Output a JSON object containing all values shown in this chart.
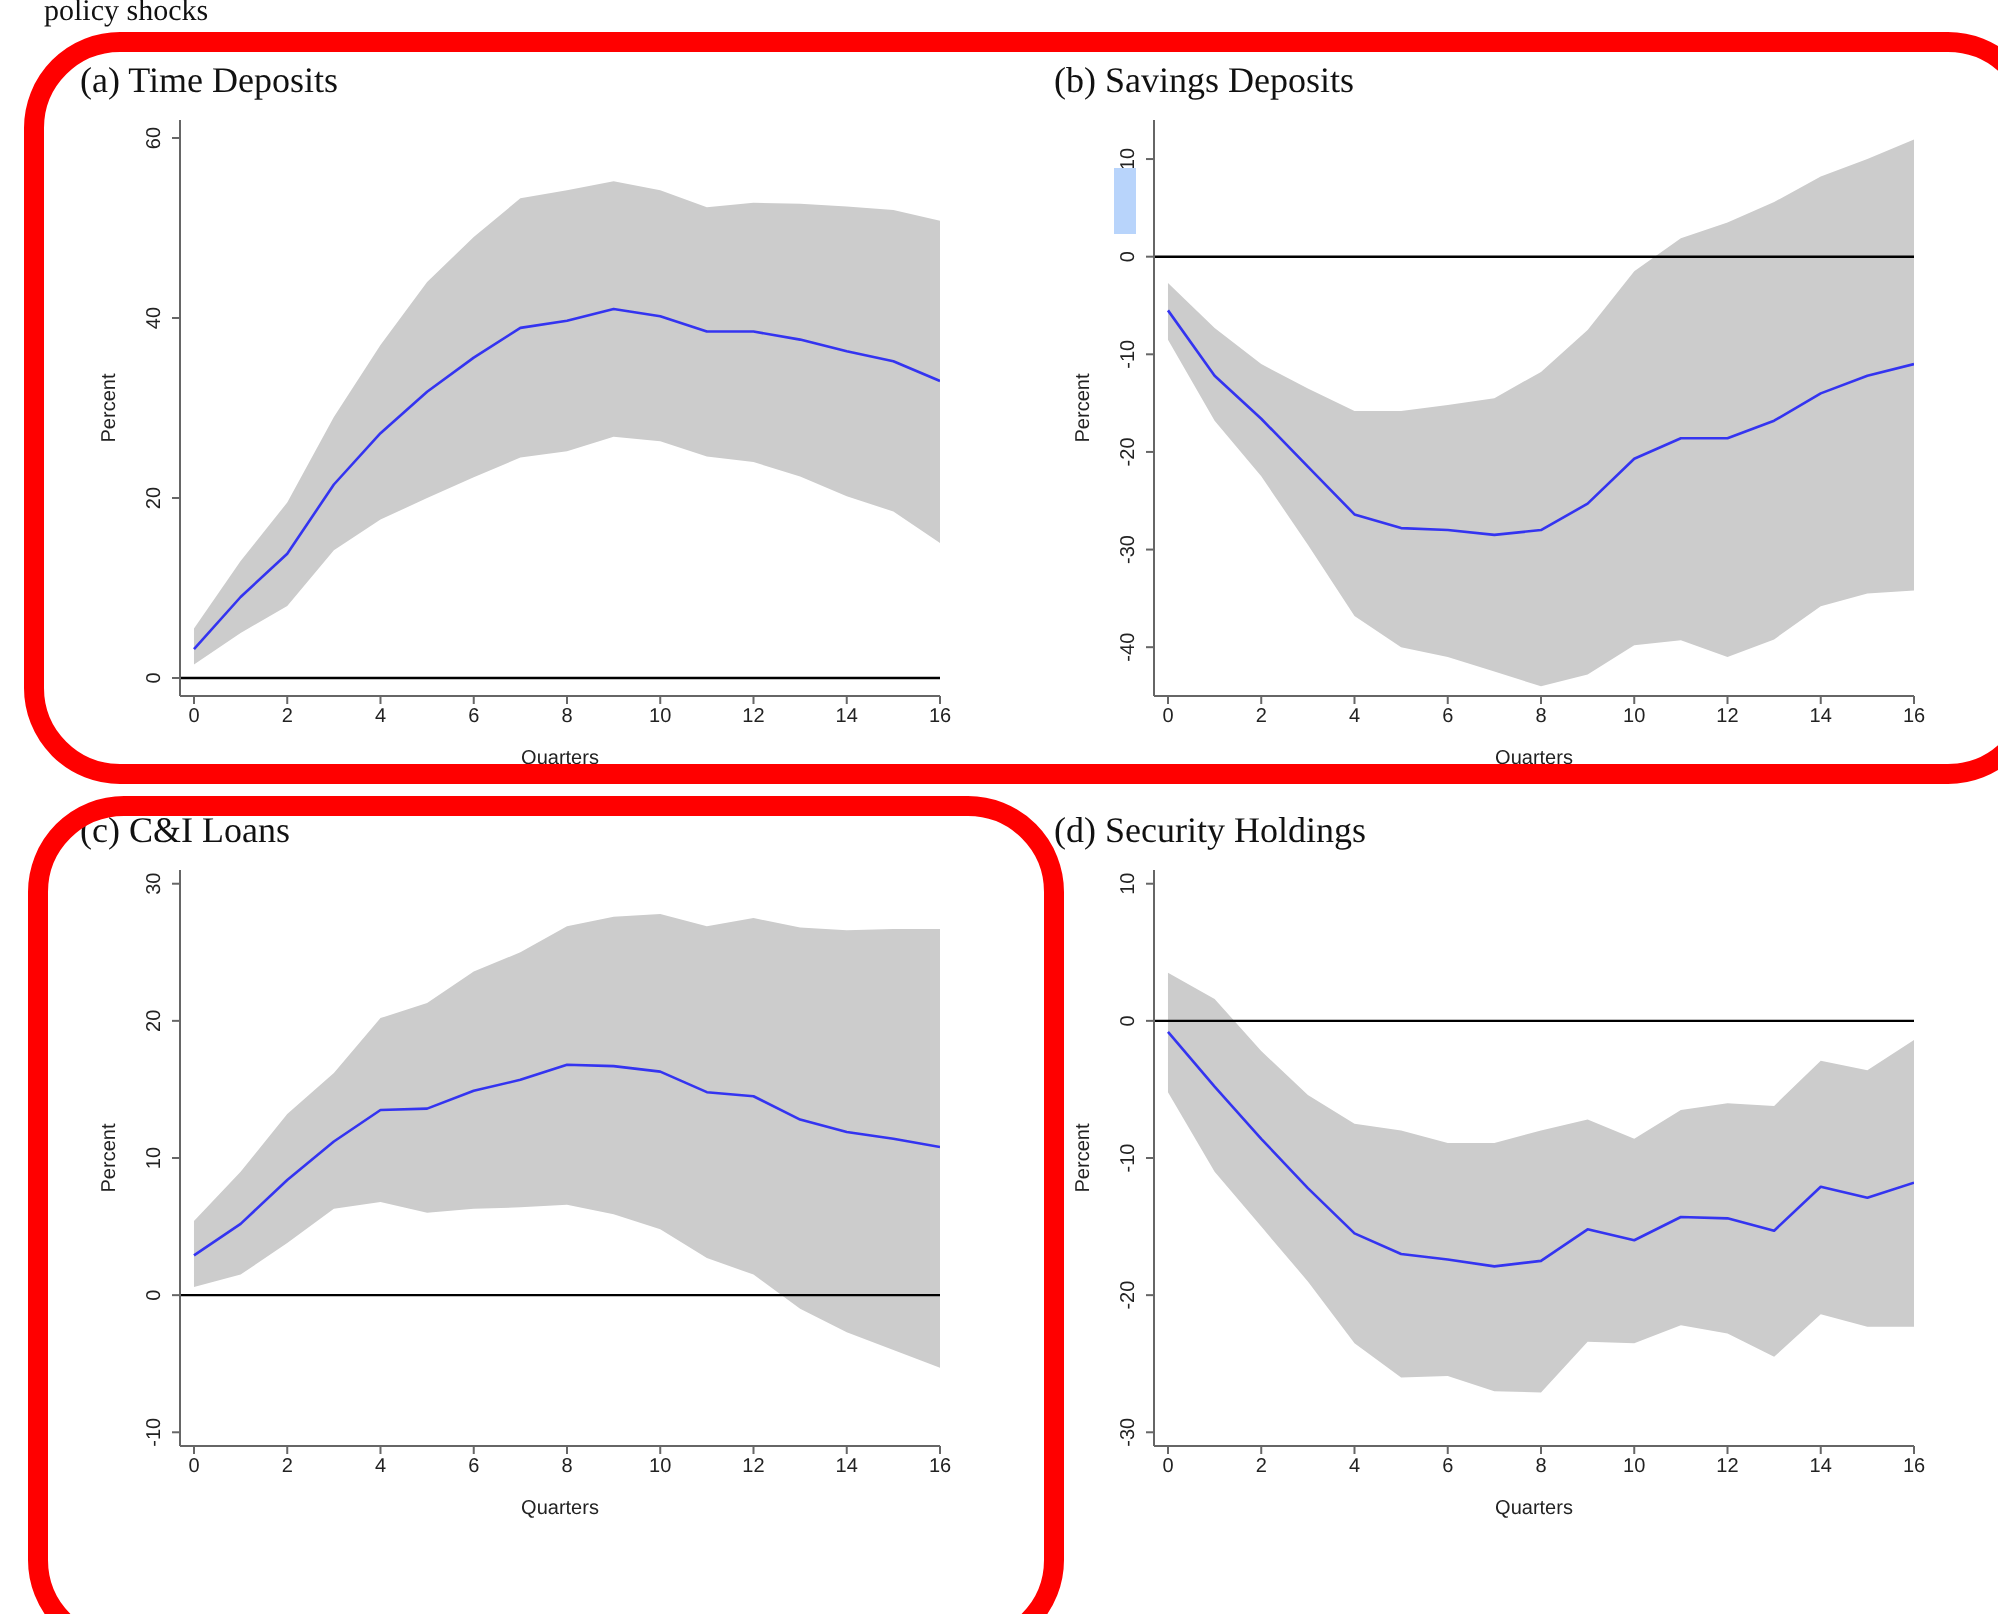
{
  "chart_data": [
    {
      "type": "line",
      "title": "(a) Time Deposits",
      "xlabel": "Quarters",
      "ylabel": "Percent",
      "annotations": [
        "policy shocks"
      ],
      "x": [
        0,
        1,
        2,
        3,
        4,
        5,
        6,
        7,
        8,
        9,
        10,
        11,
        12,
        13,
        14,
        15,
        16
      ],
      "xlim": [
        -0.3,
        16
      ],
      "xticks": [
        0,
        2,
        4,
        6,
        8,
        10,
        12,
        14,
        16
      ],
      "ylim": [
        -2,
        62
      ],
      "yticks": [
        0,
        20,
        40,
        60
      ],
      "ref_lines": [
        {
          "axis": "y",
          "value": 0,
          "color": "#000000"
        }
      ],
      "series": [
        {
          "color": "#3434f0",
          "values": [
            3.2,
            9,
            13.8,
            21.5,
            27.2,
            31.8,
            35.6,
            38.9,
            39.7,
            41,
            40.2,
            38.5,
            38.5,
            37.6,
            36.3,
            35.2,
            33
          ],
          "lower": [
            1.5,
            5,
            8,
            14.2,
            17.6,
            20,
            22.3,
            24.5,
            25.2,
            26.8,
            26.3,
            24.6,
            24,
            22.4,
            20.2,
            18.5,
            15
          ],
          "upper": [
            5.5,
            13,
            19.5,
            29,
            37,
            44,
            49,
            53.3,
            54.2,
            55.2,
            54.2,
            52.3,
            52.8,
            52.7,
            52.4,
            52,
            50.8
          ]
        }
      ]
    },
    {
      "type": "line",
      "title": "(b) Savings Deposits",
      "xlabel": "Quarters",
      "ylabel": "Percent",
      "x": [
        0,
        1,
        2,
        3,
        4,
        5,
        6,
        7,
        8,
        9,
        10,
        11,
        12,
        13,
        14,
        15,
        16
      ],
      "xlim": [
        -0.3,
        16
      ],
      "xticks": [
        0,
        2,
        4,
        6,
        8,
        10,
        12,
        14,
        16
      ],
      "ylim": [
        -45,
        14
      ],
      "yticks": [
        -40,
        -30,
        -20,
        -10,
        0,
        10
      ],
      "ref_lines": [
        {
          "axis": "y",
          "value": 0,
          "color": "#000000"
        }
      ],
      "series": [
        {
          "color": "#3434f0",
          "values": [
            -5.5,
            -12.2,
            -16.6,
            -21.5,
            -26.4,
            -27.8,
            -28,
            -28.5,
            -28,
            -25.3,
            -20.7,
            -18.6,
            -18.6,
            -16.8,
            -14,
            -12.2,
            -11
          ],
          "lower": [
            -8.5,
            -16.8,
            -22.5,
            -29.5,
            -36.8,
            -40,
            -41,
            -42.5,
            -44,
            -42.8,
            -39.8,
            -39.3,
            -41,
            -39.2,
            -35.8,
            -34.5,
            -34.2
          ],
          "upper": [
            -2.7,
            -7.3,
            -11,
            -13.5,
            -15.8,
            -15.8,
            -15.2,
            -14.5,
            -11.8,
            -7.5,
            -1.5,
            1.9,
            3.5,
            5.6,
            8.2,
            10,
            12
          ]
        }
      ]
    },
    {
      "type": "line",
      "title": "(c) C&I Loans",
      "xlabel": "Quarters",
      "ylabel": "Percent",
      "x": [
        0,
        1,
        2,
        3,
        4,
        5,
        6,
        7,
        8,
        9,
        10,
        11,
        12,
        13,
        14,
        15,
        16
      ],
      "xlim": [
        -0.3,
        16
      ],
      "xticks": [
        0,
        2,
        4,
        6,
        8,
        10,
        12,
        14,
        16
      ],
      "ylim": [
        -11,
        31
      ],
      "yticks": [
        -10,
        0,
        10,
        20,
        30
      ],
      "ref_lines": [
        {
          "axis": "y",
          "value": 0,
          "color": "#000000"
        }
      ],
      "series": [
        {
          "color": "#3434f0",
          "values": [
            2.9,
            5.2,
            8.4,
            11.2,
            13.5,
            13.6,
            14.9,
            15.7,
            16.8,
            16.7,
            16.3,
            14.8,
            14.5,
            12.8,
            11.9,
            11.4,
            10.8
          ],
          "lower": [
            0.6,
            1.5,
            3.8,
            6.3,
            6.8,
            6,
            6.3,
            6.4,
            6.6,
            5.9,
            4.8,
            2.7,
            1.5,
            -1,
            -2.7,
            -4,
            -5.3
          ],
          "upper": [
            5.4,
            9,
            13.2,
            16.2,
            20.2,
            21.3,
            23.6,
            25,
            26.9,
            27.6,
            27.8,
            26.9,
            27.5,
            26.8,
            26.6,
            26.7,
            26.7
          ]
        }
      ]
    },
    {
      "type": "line",
      "title": "(d) Security Holdings",
      "xlabel": "Quarters",
      "ylabel": "Percent",
      "x": [
        0,
        1,
        2,
        3,
        4,
        5,
        6,
        7,
        8,
        9,
        10,
        11,
        12,
        13,
        14,
        15,
        16
      ],
      "xlim": [
        -0.3,
        16
      ],
      "xticks": [
        0,
        2,
        4,
        6,
        8,
        10,
        12,
        14,
        16
      ],
      "ylim": [
        -31,
        11
      ],
      "yticks": [
        -30,
        -20,
        -10,
        0,
        10
      ],
      "ref_lines": [
        {
          "axis": "y",
          "value": 0,
          "color": "#000000"
        }
      ],
      "series": [
        {
          "color": "#3434f0",
          "values": [
            -0.8,
            -4.8,
            -8.6,
            -12.2,
            -15.5,
            -17,
            -17.4,
            -17.9,
            -17.5,
            -15.2,
            -16,
            -14.3,
            -14.4,
            -15.3,
            -12.1,
            -12.9,
            -11.8
          ],
          "lower": [
            -5.2,
            -11,
            -15,
            -19,
            -23.5,
            -26,
            -25.9,
            -27,
            -27.1,
            -23.4,
            -23.5,
            -22.2,
            -22.8,
            -24.5,
            -21.4,
            -22.3,
            -22.3
          ],
          "upper": [
            3.5,
            1.6,
            -2.2,
            -5.4,
            -7.5,
            -8,
            -8.9,
            -8.9,
            -8,
            -7.2,
            -8.6,
            -6.5,
            -6,
            -6.2,
            -2.9,
            -3.6,
            -1.4
          ]
        }
      ]
    }
  ]
}
